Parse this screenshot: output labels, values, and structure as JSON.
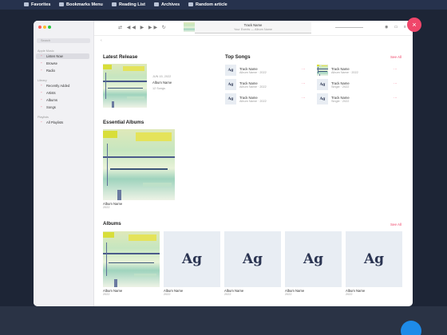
{
  "bookmarks": [
    "Favorites",
    "Bookmarks Menu",
    "Reading List",
    "Archives",
    "Random article"
  ],
  "player": {
    "title": "Track Name",
    "subtitle": "Your Events — Album Name"
  },
  "sidebar": {
    "search": "Search",
    "sections": [
      {
        "title": "Apple Music",
        "items": [
          "Listen Now",
          "Browse",
          "Radio"
        ]
      },
      {
        "title": "Library",
        "items": [
          "Recently Added",
          "Artists",
          "Albums",
          "Songs"
        ]
      },
      {
        "title": "Playlists",
        "items": [
          "All Playlists"
        ]
      }
    ]
  },
  "latest_release": {
    "heading": "Latest Release",
    "date": "JUN 15, 2022",
    "name": "Album Name",
    "meta": "12 Songs"
  },
  "top_songs": {
    "heading": "Top Songs",
    "see_all": "See All",
    "songs": [
      {
        "title": "Track Name",
        "subtitle": "Album Name · 2022"
      },
      {
        "title": "Track Name",
        "subtitle": "Album Name · 2022"
      },
      {
        "title": "Track Name",
        "subtitle": "Album Name · 2022"
      },
      {
        "title": "Track Name",
        "subtitle": "Album Name · 2022"
      },
      {
        "title": "Track Name",
        "subtitle": "Single · 2022"
      },
      {
        "title": "Track Name",
        "subtitle": "Single · 2022"
      }
    ]
  },
  "essential_albums": {
    "heading": "Essential Albums",
    "album": {
      "name": "Album Name",
      "year": "2022"
    }
  },
  "albums": {
    "heading": "Albums",
    "see_all": "See All",
    "placeholder": "Ag",
    "items": [
      {
        "name": "Album Name",
        "year": "2022"
      },
      {
        "name": "Album Name",
        "year": "2022"
      },
      {
        "name": "Album Name",
        "year": "2022"
      },
      {
        "name": "Album Name",
        "year": "2022"
      },
      {
        "name": "Album Name",
        "year": "2022"
      }
    ]
  }
}
